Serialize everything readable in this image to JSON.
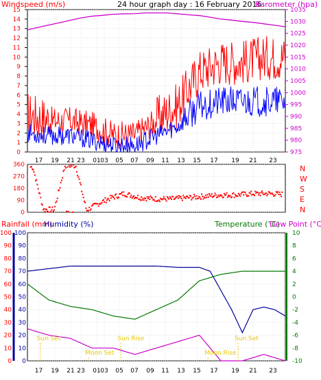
{
  "colors": {
    "red": "#ff0000",
    "blue": "#0000ff",
    "magenta": "#cc00cc",
    "green": "#007700",
    "navy": "#0000a0",
    "grid": "#cccccc",
    "sunmoon": "#e6c800"
  },
  "chart_data": [
    {
      "type": "line",
      "title": "24 hour graph day : 16 February 2016",
      "ylabel": "Windspeed (m/s)",
      "y2label": "Barometer (hpa)",
      "x_ticks": [
        "17",
        "19",
        "21",
        "23",
        "01",
        "03",
        "05",
        "07",
        "09",
        "11",
        "13",
        "15",
        "17",
        "19",
        "21",
        "23"
      ],
      "x_range_hours": [
        16,
        40
      ],
      "ylim": [
        0,
        15
      ],
      "y_ticks": [
        0,
        1,
        2,
        3,
        4,
        5,
        6,
        7,
        8,
        9,
        10,
        11,
        12,
        13,
        14,
        15
      ],
      "y2lim": [
        975,
        1035
      ],
      "y2_ticks": [
        975,
        980,
        985,
        990,
        995,
        1000,
        1005,
        1010,
        1015,
        1020,
        1025,
        1030,
        1035
      ],
      "grid": true,
      "series": [
        {
          "name": "Barometer",
          "axis": "right",
          "x": [
            16,
            17,
            18,
            19,
            20,
            21,
            22,
            23,
            24,
            25,
            26,
            27,
            28,
            29,
            30,
            31,
            32,
            33,
            34,
            35,
            36,
            37,
            38,
            39,
            40
          ],
          "values": [
            1026.5,
            1027.5,
            1028.5,
            1029.5,
            1030.5,
            1031.5,
            1032.2,
            1032.6,
            1033,
            1033.2,
            1033.3,
            1033.6,
            1033.6,
            1033.6,
            1033.2,
            1032.8,
            1032.5,
            1031.8,
            1031,
            1030.6,
            1030,
            1029.6,
            1029,
            1028.4,
            1027.8
          ]
        },
        {
          "name": "Wind gust",
          "x": [
            16,
            18,
            20,
            22,
            24,
            26,
            28,
            30,
            32,
            34,
            36,
            38,
            40
          ],
          "values": [
            3.5,
            3,
            3,
            2.5,
            1.5,
            1.5,
            3,
            4.5,
            8,
            9,
            9,
            9.5,
            9.5
          ]
        },
        {
          "name": "Wind speed",
          "x": [
            16,
            18,
            20,
            22,
            24,
            26,
            28,
            30,
            32,
            34,
            36,
            38,
            40
          ],
          "values": [
            1.8,
            1.5,
            1.5,
            1,
            0.5,
            0.5,
            1.5,
            2.5,
            4.5,
            5,
            5,
            5,
            5
          ]
        }
      ]
    },
    {
      "type": "scatter",
      "ylabel": "Wind direction",
      "x_range_hours": [
        16,
        40
      ],
      "ylim": [
        0,
        360
      ],
      "y_ticks": [
        0,
        90,
        180,
        270,
        360
      ],
      "compass": [
        "N",
        "W",
        "S",
        "E",
        "N"
      ],
      "grid": true,
      "series": [
        {
          "name": "Direction",
          "x": [
            16.5,
            17.5,
            18.5,
            19.5,
            20.5,
            21.5,
            22.5,
            23.5,
            25,
            26.5,
            28,
            29.5,
            31,
            32.5,
            34,
            35.5,
            37,
            38.5,
            39.5
          ],
          "values": [
            340,
            20,
            20,
            350,
            350,
            15,
            60,
            100,
            140,
            110,
            100,
            100,
            110,
            120,
            130,
            130,
            140,
            140,
            135
          ]
        }
      ]
    },
    {
      "type": "line",
      "ylabel": "Rainfall (mm)",
      "ylabel2": "Humidity (%)",
      "y2label": "Temperature (°C)",
      "y2label2": "Dew Point (°C)",
      "x_ticks": [
        "17",
        "19",
        "21",
        "23",
        "01",
        "03",
        "05",
        "07",
        "09",
        "11",
        "13",
        "15",
        "17",
        "19",
        "21",
        "23"
      ],
      "x_range_hours": [
        16,
        40
      ],
      "ylim": [
        0,
        100
      ],
      "y_ticks": [
        0,
        10,
        20,
        30,
        40,
        50,
        60,
        70,
        80,
        90,
        100
      ],
      "y2lim": [
        -10,
        10
      ],
      "y2_ticks": [
        -10,
        -8,
        -6,
        -4,
        -2,
        0,
        2,
        4,
        6,
        8,
        10
      ],
      "grid": true,
      "series": [
        {
          "name": "Humidity",
          "axis": "left",
          "x": [
            16,
            18,
            20,
            22,
            24,
            26,
            28,
            30,
            32,
            33,
            34,
            35,
            36,
            37,
            38,
            39,
            40
          ],
          "values": [
            70,
            72,
            74,
            74,
            74,
            74,
            74,
            73,
            73,
            70,
            55,
            40,
            22,
            40,
            42,
            40,
            35
          ]
        },
        {
          "name": "Temperature",
          "axis": "right",
          "x": [
            16,
            18,
            20,
            22,
            24,
            26,
            28,
            30,
            32,
            34,
            36,
            38,
            40
          ],
          "values": [
            2,
            -0.5,
            -1.5,
            -2,
            -3,
            -3.5,
            -2,
            -0.5,
            2.5,
            3.5,
            4,
            4,
            4
          ]
        },
        {
          "name": "Dew Point",
          "axis": "right",
          "x": [
            16,
            18,
            20,
            22,
            24,
            26,
            28,
            30,
            32,
            34,
            36,
            38,
            40
          ],
          "values": [
            -5,
            -6,
            -6.5,
            -8,
            -8,
            -9,
            -8,
            -7,
            -6,
            -10,
            -10,
            -9,
            -10
          ]
        }
      ],
      "annotations": [
        "Sun Set",
        "Moon Set",
        "Sun Rise",
        "Moon Rise",
        "Sun Set"
      ]
    }
  ],
  "labels": {
    "top_left": "Windspeed (m/s)",
    "top_title": "24 hour graph day : 16 February 2016",
    "top_right": "Barometer (hpa)",
    "mid_right": [
      "N",
      "W",
      "S",
      "E",
      "N"
    ],
    "bottom_left1": "Rainfall (mm)",
    "bottom_left2": "Humidity (%)",
    "bottom_right1": "Temperature (°C)",
    "bottom_right2": "Dew Point (°C)"
  }
}
